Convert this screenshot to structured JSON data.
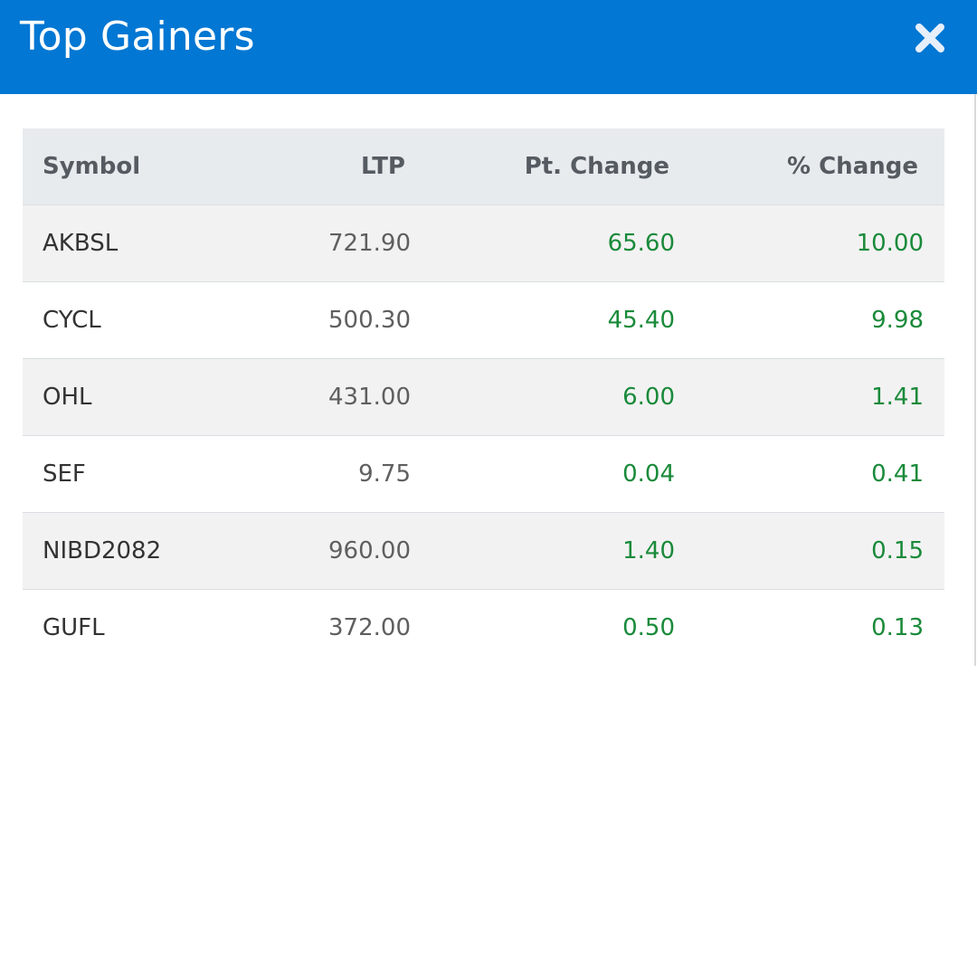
{
  "modal": {
    "title": "Top Gainers",
    "close_icon": "close-icon",
    "colors": {
      "header_bg": "#0277d3",
      "positive": "#1a8a3a"
    }
  },
  "table": {
    "headers": {
      "symbol": "Symbol",
      "ltp": "LTP",
      "pt_change": "Pt. Change",
      "pct_change": "% Change"
    },
    "rows": [
      {
        "symbol": "AKBSL",
        "ltp": "721.90",
        "pt_change": "65.60",
        "pct_change": "10.00"
      },
      {
        "symbol": "CYCL",
        "ltp": "500.30",
        "pt_change": "45.40",
        "pct_change": "9.98"
      },
      {
        "symbol": "OHL",
        "ltp": "431.00",
        "pt_change": "6.00",
        "pct_change": "1.41"
      },
      {
        "symbol": "SEF",
        "ltp": "9.75",
        "pt_change": "0.04",
        "pct_change": "0.41"
      },
      {
        "symbol": "NIBD2082",
        "ltp": "960.00",
        "pt_change": "1.40",
        "pct_change": "0.15"
      },
      {
        "symbol": "GUFL",
        "ltp": "372.00",
        "pt_change": "0.50",
        "pct_change": "0.13"
      }
    ]
  }
}
